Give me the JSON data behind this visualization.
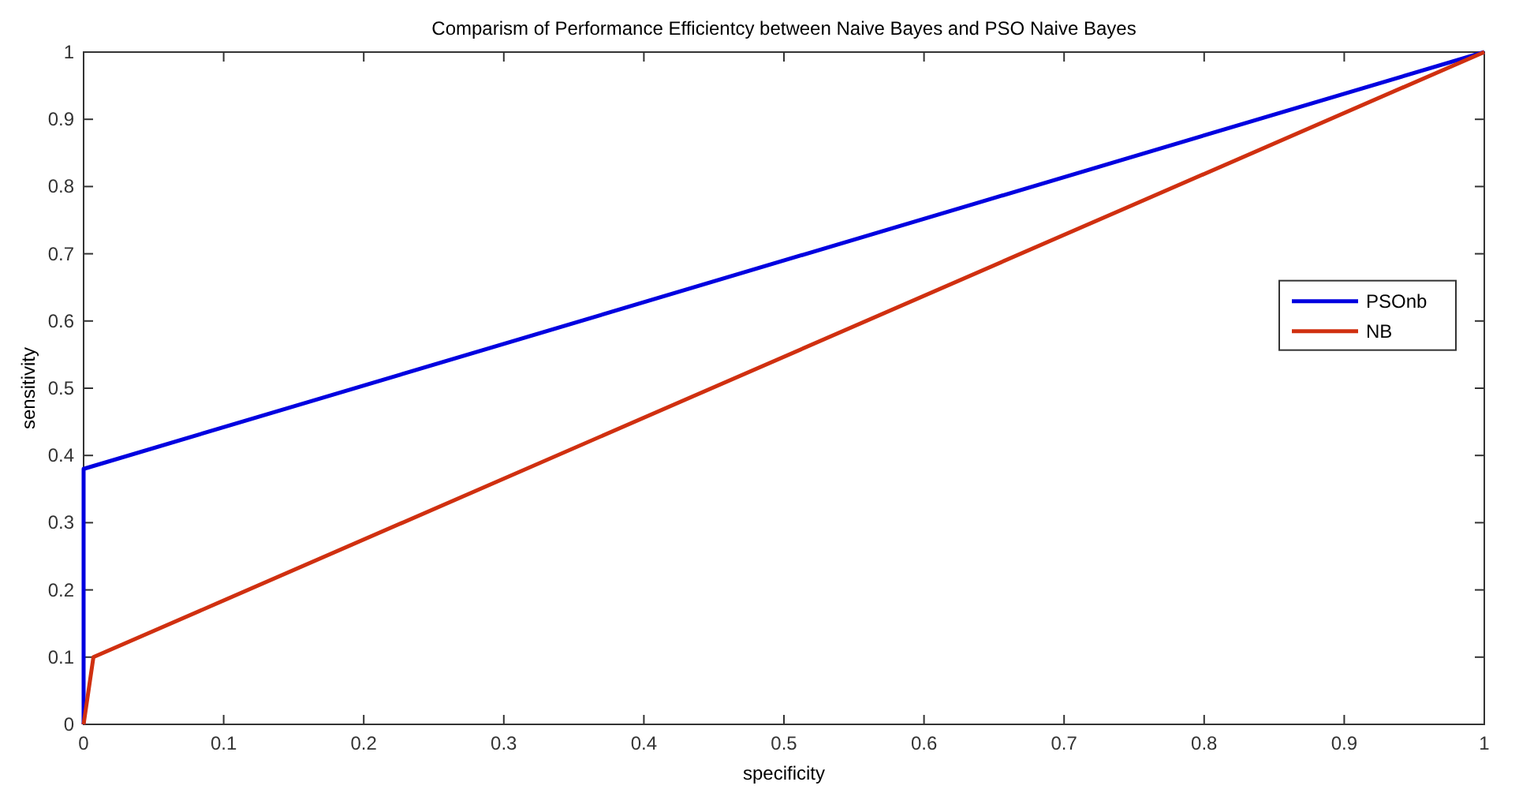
{
  "chart_data": {
    "type": "line",
    "title": "Comparism of Performance Efficientcy between Naive Bayes and PSO Naive Bayes",
    "xlabel": "specificity",
    "ylabel": "sensitivity",
    "series": [
      {
        "name": "PSOnb",
        "color": "#0000e0",
        "x": [
          0,
          0,
          1
        ],
        "values": [
          0,
          0.38,
          1
        ]
      },
      {
        "name": "NB",
        "color": "#d03010",
        "x": [
          0,
          0.007,
          1
        ],
        "values": [
          0,
          0.1,
          1
        ]
      }
    ],
    "xlim": [
      0,
      1
    ],
    "ylim": [
      0,
      1
    ],
    "xticks": [
      0,
      0.1,
      0.2,
      0.3,
      0.4,
      0.5,
      0.6,
      0.7,
      0.8,
      0.9,
      1
    ],
    "yticks": [
      0,
      0.1,
      0.2,
      0.3,
      0.4,
      0.5,
      0.6,
      0.7,
      0.8,
      0.9,
      1
    ],
    "grid": false,
    "legend": "right",
    "marker": "none",
    "line_style": "solid"
  }
}
